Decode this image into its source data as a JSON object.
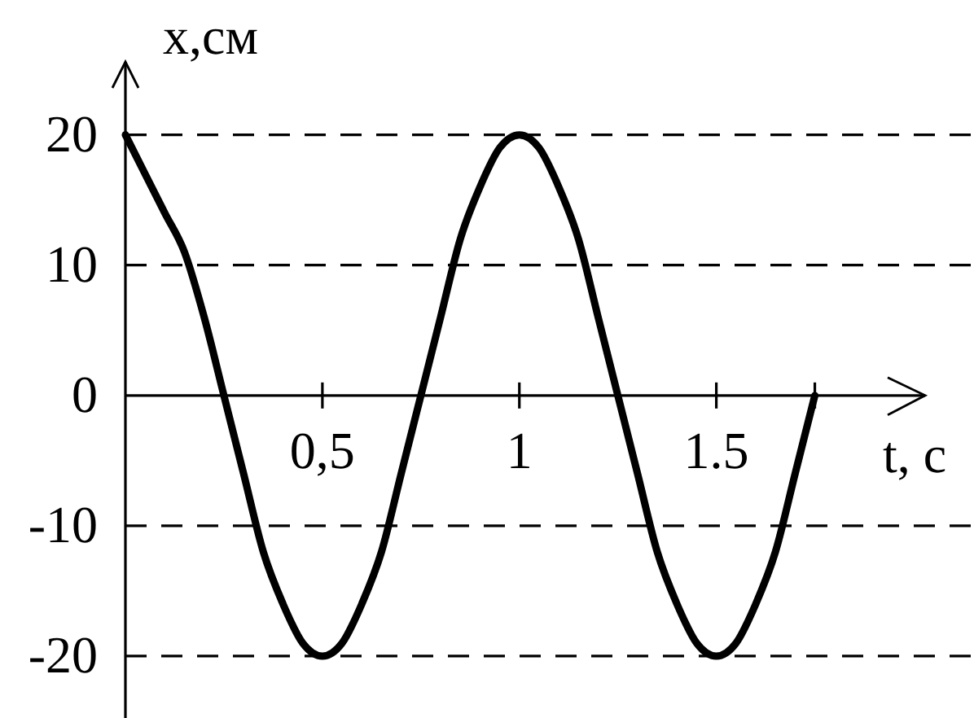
{
  "chart_data": {
    "type": "line",
    "xlabel": "t, c",
    "ylabel": "x,см",
    "x": [
      0,
      0.05,
      0.1,
      0.15,
      0.2,
      0.25,
      0.3,
      0.35,
      0.4,
      0.45,
      0.5,
      0.55,
      0.6,
      0.65,
      0.7,
      0.75,
      0.8,
      0.85,
      0.9,
      0.95,
      1,
      1.05,
      1.1,
      1.15,
      1.2,
      1.25,
      1.3,
      1.35,
      1.4,
      1.45,
      1.5,
      1.55,
      1.6,
      1.65,
      1.7,
      1.75
    ],
    "series": [
      {
        "color": "#000000",
        "values": [
          20,
          17,
          14,
          11,
          6,
          0,
          -6,
          -12,
          -16,
          -19,
          -20,
          -19,
          -16,
          -12,
          -6,
          0,
          6,
          12,
          16,
          19,
          20,
          19,
          16,
          12,
          6,
          0,
          -6,
          -12,
          -16,
          -19,
          -20,
          -19,
          -16,
          -12,
          -6,
          0
        ]
      }
    ],
    "xlim": [
      0,
      2.03
    ],
    "ylim": [
      -24.75,
      25.6
    ],
    "xticks": [
      {
        "value": 0.5,
        "label": "0,5"
      },
      1,
      {
        "value": 1.5,
        "label": "1.5"
      },
      {
        "value": 1.75,
        "label": null
      }
    ],
    "yticks": [
      -20,
      -10,
      0,
      10,
      20
    ],
    "ref_lines": [
      {
        "axis": "y",
        "value": 20,
        "color": "#000000",
        "line_style": "dashed"
      },
      {
        "axis": "y",
        "value": 10,
        "color": "#000000",
        "line_style": "dashed"
      },
      {
        "axis": "y",
        "value": -10,
        "color": "#000000",
        "line_style": "dashed"
      },
      {
        "axis": "y",
        "value": -20,
        "color": "#000000",
        "line_style": "dashed"
      }
    ]
  }
}
